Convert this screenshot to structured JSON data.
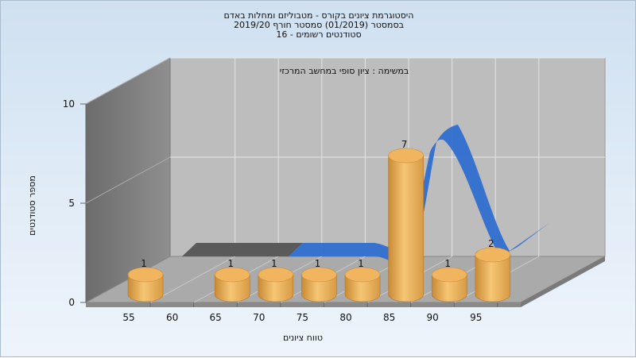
{
  "titles": [
    "היסטוגרמת ציונים בקורס - מטבוליזם ומחלות באדם",
    "בסמסטר  (01/2019)  סמסטר חורף 2019/20",
    "סטודנטים רשומים - 16"
  ],
  "chart_data": {
    "type": "bar",
    "subtitle": "במשימה : ציון סופי במחשב המרכזי",
    "xlabel": "טווח ציונים",
    "ylabel": "מספר סטודנטים",
    "x_ticks": [
      "55",
      "60",
      "65",
      "70",
      "75",
      "80",
      "85",
      "90",
      "95"
    ],
    "y_ticks": [
      0,
      5,
      10
    ],
    "ylim": [
      0,
      10
    ],
    "bar_color": "#f0a94a",
    "curve_color": "#2f6fcf",
    "bars": [
      {
        "x": 55,
        "value": 1
      },
      {
        "x": 65,
        "value": 1
      },
      {
        "x": 70,
        "value": 1
      },
      {
        "x": 75,
        "value": 1
      },
      {
        "x": 80,
        "value": 1
      },
      {
        "x": 85,
        "value": 7
      },
      {
        "x": 90,
        "value": 1
      },
      {
        "x": 95,
        "value": 2
      }
    ]
  }
}
